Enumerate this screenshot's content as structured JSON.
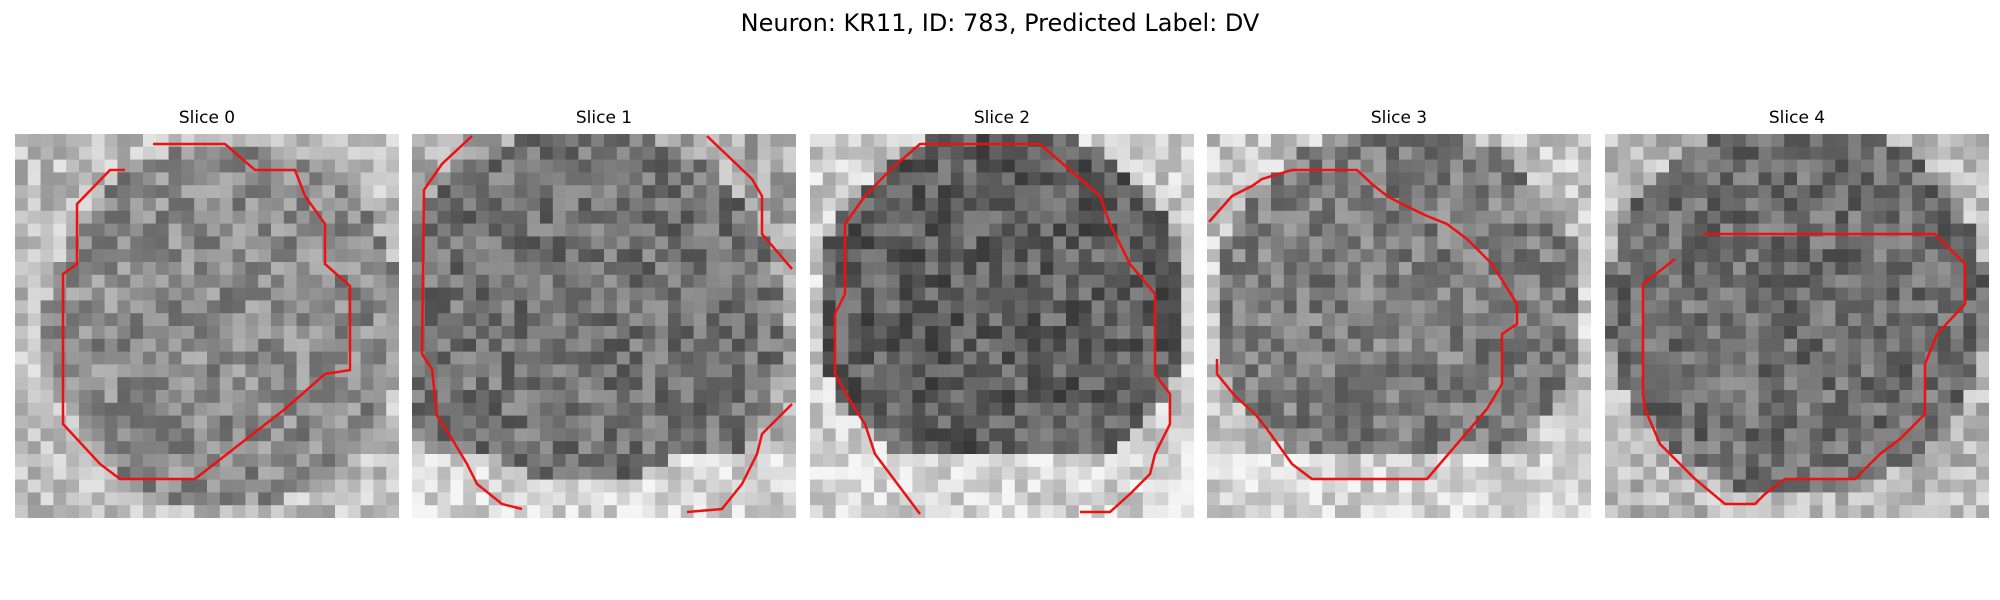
{
  "figure": {
    "title": "Neuron: KR11, ID: 783, Predicted Label: DV"
  },
  "panels": [
    {
      "title": "Slice 0"
    },
    {
      "title": "Slice 1"
    },
    {
      "title": "Slice 2"
    },
    {
      "title": "Slice 3"
    },
    {
      "title": "Slice 4"
    }
  ],
  "style": {
    "contour_color": "#ee1111",
    "colormap": "grayscale"
  }
}
